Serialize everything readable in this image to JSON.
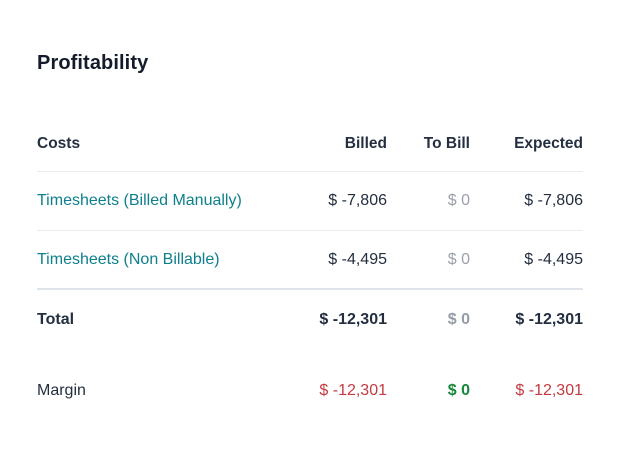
{
  "page": {
    "title": "Profitability"
  },
  "table": {
    "columns": {
      "label": "Costs",
      "billed": "Billed",
      "to_bill": "To Bill",
      "expected": "Expected"
    },
    "rows": [
      {
        "label": "Timesheets (Billed Manually)",
        "billed": "$ -7,806",
        "to_bill": "$ 0",
        "expected": "$ -7,806"
      },
      {
        "label": "Timesheets (Non Billable)",
        "billed": "$ -4,495",
        "to_bill": "$ 0",
        "expected": "$ -4,495"
      }
    ],
    "total": {
      "label": "Total",
      "billed": "$ -12,301",
      "to_bill": "$ 0",
      "expected": "$ -12,301"
    },
    "margin": {
      "label": "Margin",
      "billed": "$ -12,301",
      "to_bill": "$ 0",
      "expected": "$ -12,301"
    }
  },
  "colors": {
    "teal_link": "#0e7f8d",
    "negative_red": "#c43a40",
    "positive_green": "#17873a",
    "muted_gray": "#9aa1ac",
    "text_dark": "#232e3f",
    "divider": "#e9ebef"
  }
}
